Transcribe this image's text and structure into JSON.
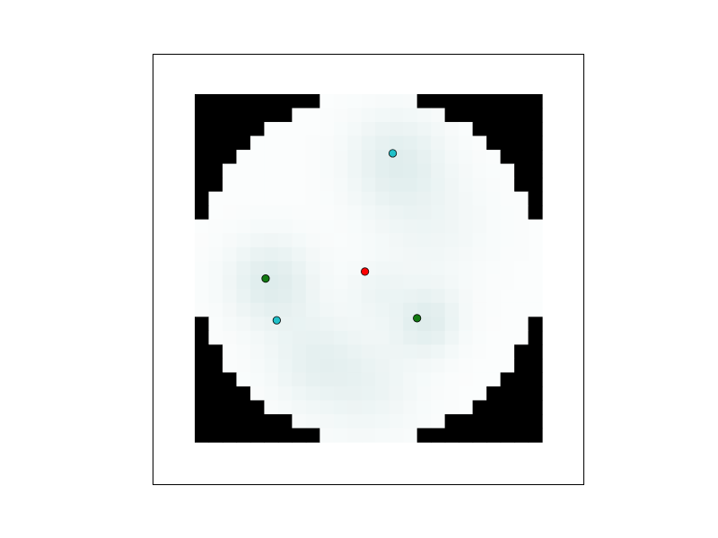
{
  "chart_data": {
    "type": "heatmap",
    "title": "",
    "xlabel": "",
    "ylabel": "",
    "grid": false,
    "axis_ticks": false,
    "colors": {
      "background": "#ffffff",
      "mask": "#000000",
      "heat_low": "#ffffff",
      "heat_high": "#d2e5e5",
      "frame": "#000000",
      "marker_red": "#ff0000",
      "marker_cyan": "#20c0c8",
      "marker_green": "#127a12"
    },
    "grid_size": [
      25,
      25
    ],
    "disk": {
      "center": [
        12,
        12
      ],
      "radius": 12.5
    },
    "heat_sources": [
      {
        "x": 14,
        "y": 4.3,
        "strength": 0.75,
        "spread": 2.4
      },
      {
        "x": 5,
        "y": 13,
        "strength": 0.85,
        "spread": 2.2
      },
      {
        "x": 16.2,
        "y": 15.8,
        "strength": 0.8,
        "spread": 1.7
      },
      {
        "x": 8,
        "y": 18.5,
        "strength": 0.55,
        "spread": 2.4
      },
      {
        "x": 12,
        "y": 20.5,
        "strength": 0.45,
        "spread": 2.6
      },
      {
        "x": 16.5,
        "y": 9,
        "strength": 0.35,
        "spread": 3.0
      },
      {
        "x": 12.6,
        "y": 13.6,
        "strength": 0.35,
        "spread": 1.4
      }
    ],
    "series": [
      {
        "color_key": "marker_red",
        "points": [
          [
            12.25,
            12.75
          ]
        ]
      },
      {
        "color_key": "marker_cyan",
        "points": [
          [
            14.25,
            4.25
          ],
          [
            5.9,
            16.25
          ]
        ]
      },
      {
        "color_key": "marker_green",
        "points": [
          [
            5.1,
            13.25
          ],
          [
            16,
            16.1
          ]
        ]
      }
    ]
  }
}
